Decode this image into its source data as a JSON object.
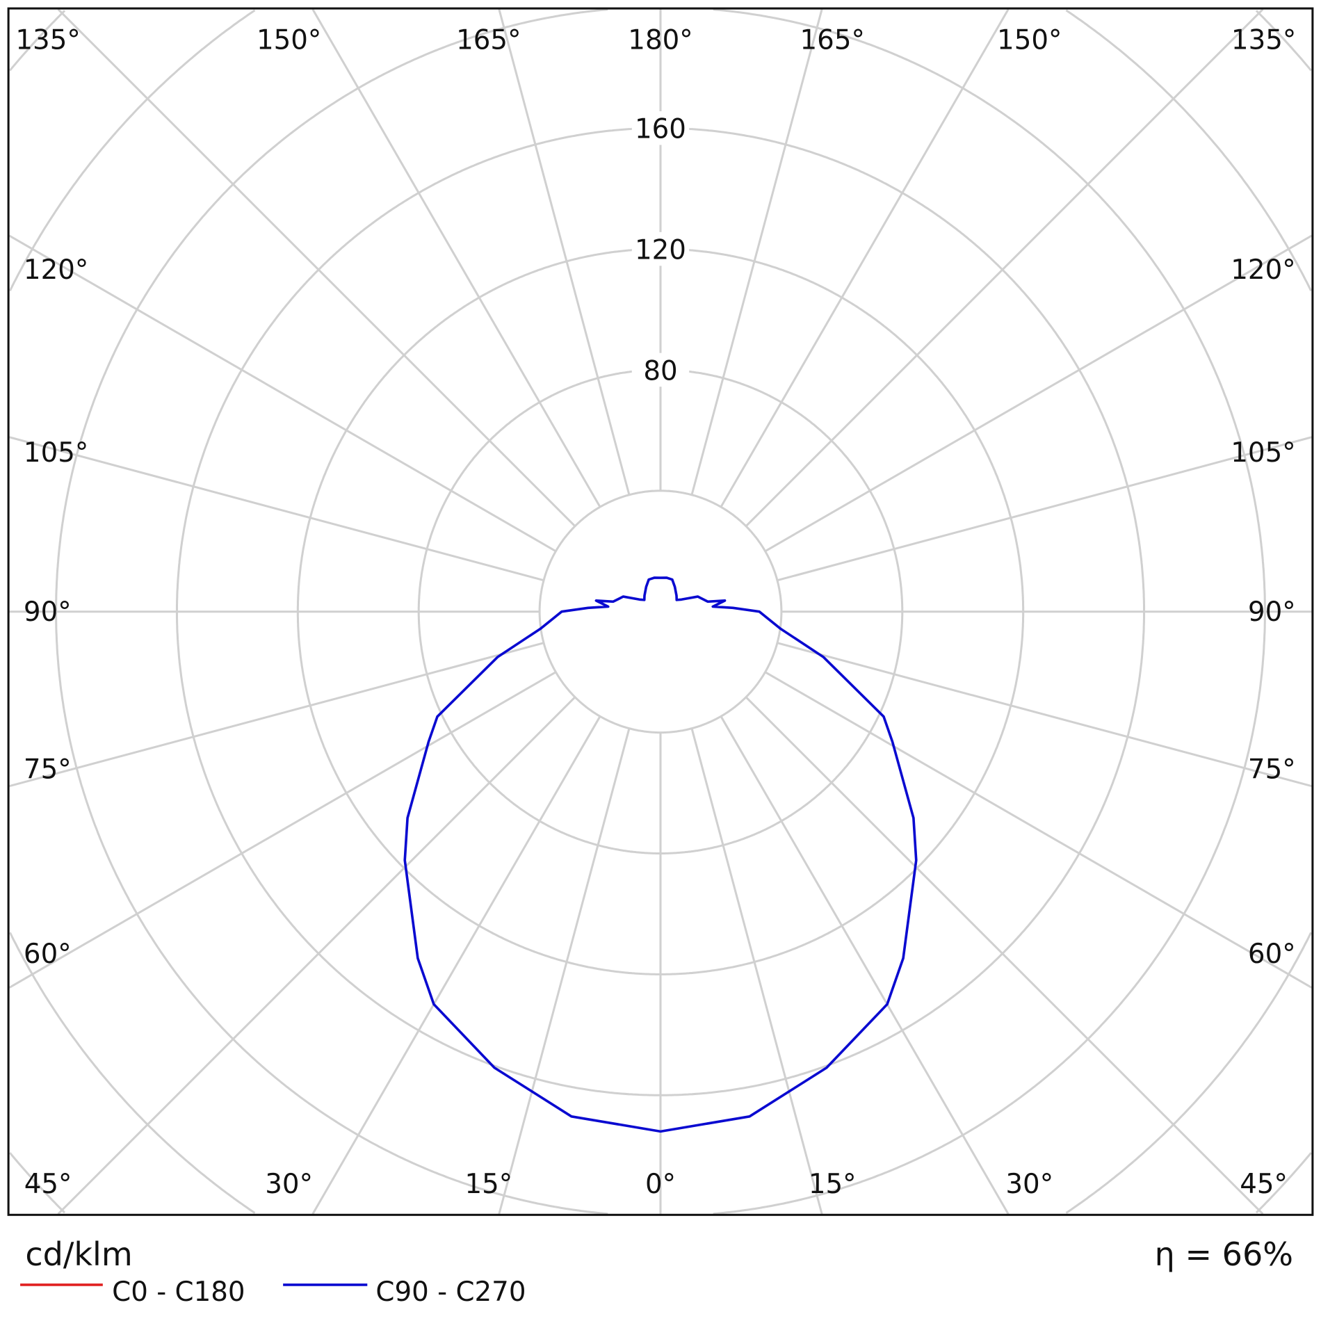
{
  "chart_data": {
    "type": "polar",
    "title": "",
    "unit_label": "cd/klm",
    "efficiency_label": "η = 66%",
    "radial_ticks": [
      40,
      80,
      120,
      160,
      200,
      240,
      280
    ],
    "radial_tick_labels": [
      "80",
      "120",
      "160"
    ],
    "angle_labels_top": [
      "135°",
      "150°",
      "165°",
      "180°",
      "165°",
      "150°",
      "135°"
    ],
    "angle_labels_left": [
      "120°",
      "105°",
      "90°",
      "75°",
      "60°"
    ],
    "angle_labels_right": [
      "120°",
      "105°",
      "90°",
      "75°",
      "60°"
    ],
    "angle_labels_bottom": [
      "45°",
      "30°",
      "15°",
      "0°",
      "15°",
      "30°",
      "45°"
    ],
    "grid": true,
    "legend_position": "bottom-left",
    "series": [
      {
        "name": "C0 - C180",
        "color": "#e02020",
        "points": []
      },
      {
        "name": "C90 - C270",
        "color": "#0a0ad0",
        "symmetric": true,
        "points": [
          [
            0,
            172
          ],
          [
            10,
            169.6
          ],
          [
            20,
            160.6
          ],
          [
            30,
            150
          ],
          [
            35,
            140
          ],
          [
            45.8,
            118
          ],
          [
            50.8,
            108
          ],
          [
            60.7,
            88
          ],
          [
            64.8,
            81.6
          ],
          [
            74.4,
            56
          ],
          [
            82,
            40
          ],
          [
            90,
            32.7
          ],
          [
            93,
            24
          ],
          [
            95.5,
            17.4
          ],
          [
            99.7,
            21.6
          ],
          [
            102,
            16
          ],
          [
            112,
            13.3
          ],
          [
            120,
            8
          ],
          [
            126,
            6.6
          ],
          [
            135,
            7.5
          ],
          [
            150,
            9.5
          ],
          [
            160,
            11.3
          ],
          [
            170,
            11.4
          ],
          [
            180,
            11.2
          ]
        ]
      }
    ]
  }
}
